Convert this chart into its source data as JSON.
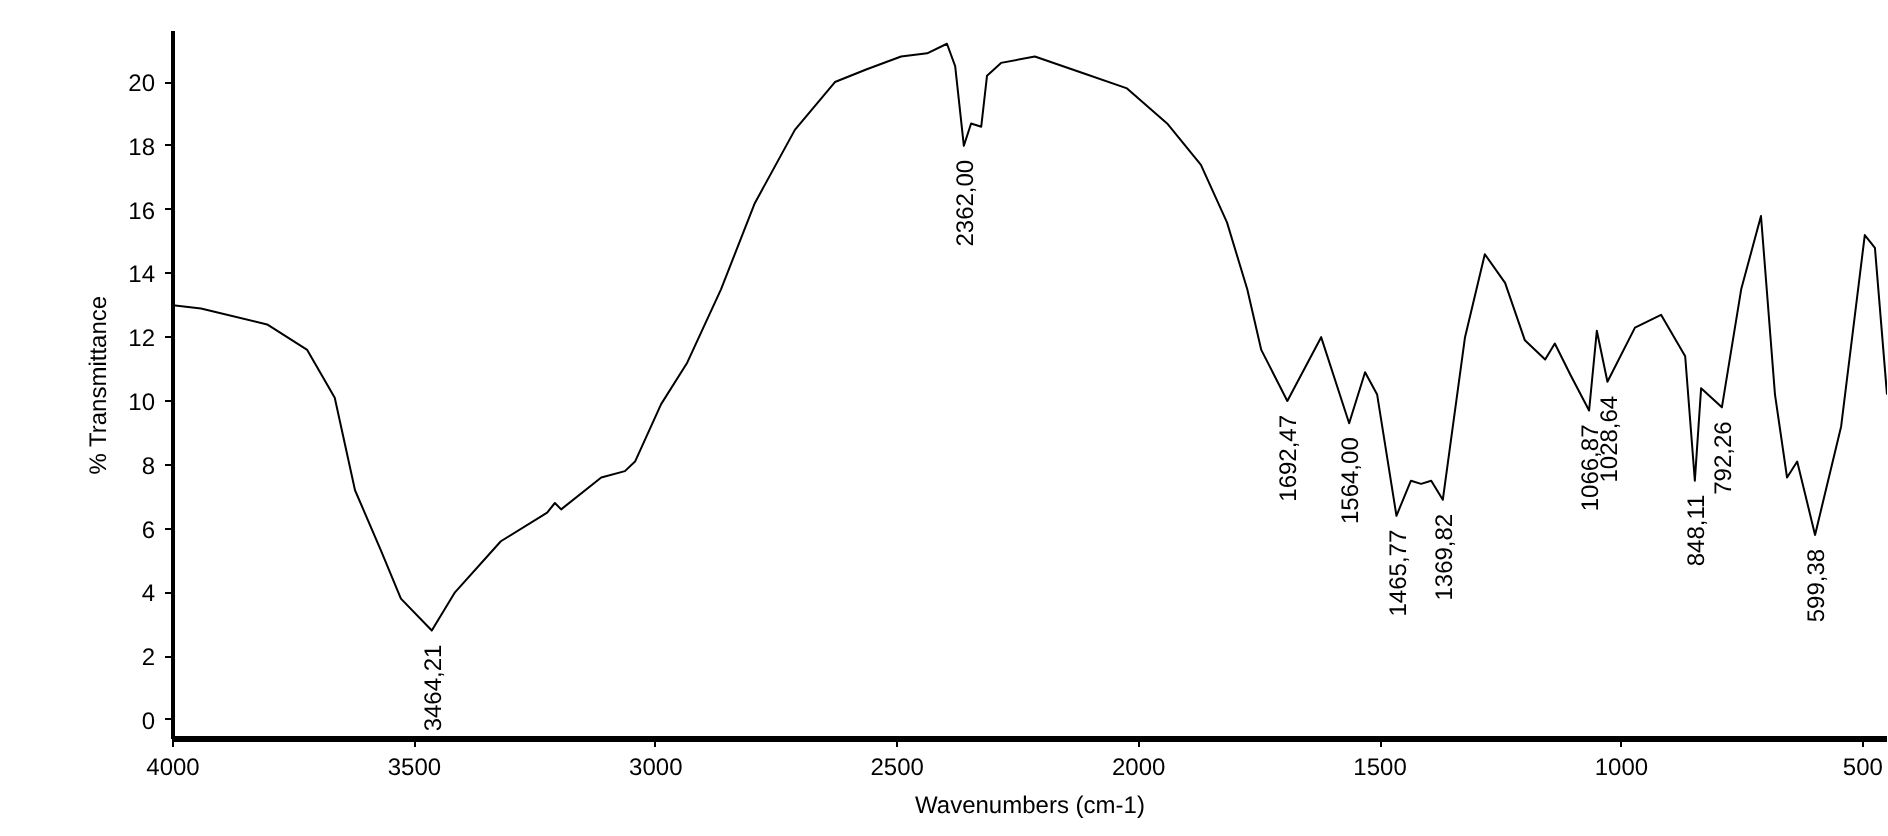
{
  "chart_data": {
    "type": "line",
    "xlabel": "Wavenumbers (cm-1)",
    "ylabel": "% Transmittance",
    "xlim": [
      4000,
      450
    ],
    "ylim": [
      -0.6,
      21.6
    ],
    "xticks": [
      4000,
      3500,
      3000,
      2500,
      2000,
      1500,
      1000,
      500
    ],
    "yticks": [
      0,
      2,
      4,
      6,
      8,
      10,
      12,
      14,
      16,
      18,
      20
    ],
    "grid": false,
    "marker": "none",
    "line_style": "solid",
    "series": [
      {
        "color": "#000000",
        "x": [
          4000,
          3942,
          3805,
          3722,
          3665,
          3623,
          3569,
          3528,
          3464,
          3416,
          3321,
          3225,
          3209,
          3196,
          3113,
          3064,
          3043,
          2989,
          2935,
          2865,
          2795,
          2712,
          2629,
          2563,
          2492,
          2438,
          2397,
          2380,
          2362,
          2347,
          2326,
          2314,
          2285,
          2215,
          2119,
          2024,
          1941,
          1871,
          1817,
          1775,
          1746,
          1692,
          1622,
          1564,
          1531,
          1506,
          1466,
          1436,
          1415,
          1394,
          1370,
          1324,
          1283,
          1241,
          1200,
          1158,
          1138,
          1105,
          1067,
          1051,
          1029,
          972,
          918,
          868,
          848,
          835,
          792,
          752,
          711,
          682,
          657,
          636,
          599,
          545,
          496,
          475,
          450
        ],
        "values": [
          13.0,
          12.9,
          12.4,
          11.6,
          10.1,
          7.2,
          5.3,
          3.8,
          2.8,
          4.0,
          5.6,
          6.5,
          6.8,
          6.6,
          7.6,
          7.8,
          8.1,
          9.9,
          11.2,
          13.5,
          16.2,
          18.5,
          20.0,
          20.4,
          20.8,
          20.9,
          21.2,
          20.5,
          18.0,
          18.7,
          18.6,
          20.2,
          20.6,
          20.8,
          20.3,
          19.8,
          18.7,
          17.4,
          15.6,
          13.5,
          11.6,
          10.0,
          12.0,
          9.3,
          10.9,
          10.2,
          6.4,
          7.5,
          7.4,
          7.5,
          6.9,
          12.0,
          14.6,
          13.7,
          11.9,
          11.3,
          11.8,
          10.8,
          9.7,
          12.2,
          10.6,
          12.3,
          12.7,
          11.4,
          7.5,
          10.4,
          9.8,
          13.5,
          15.8,
          10.2,
          7.6,
          8.1,
          5.8,
          9.2,
          15.2,
          14.8,
          10.2
        ]
      }
    ],
    "annotations": [
      {
        "text": "3464,21",
        "x": 3464.21,
        "y": 2.8
      },
      {
        "text": "2362,00",
        "x": 2362.0,
        "y": 18.0
      },
      {
        "text": "1692,47",
        "x": 1692.47,
        "y": 10.0
      },
      {
        "text": "1564,00",
        "x": 1564.0,
        "y": 9.3
      },
      {
        "text": "1465,77",
        "x": 1465.77,
        "y": 6.4
      },
      {
        "text": "1369,82",
        "x": 1369.82,
        "y": 6.9
      },
      {
        "text": "1066,87",
        "x": 1066.87,
        "y": 9.7
      },
      {
        "text": "1028,64",
        "x": 1028.64,
        "y": 10.6
      },
      {
        "text": "848,11",
        "x": 848.11,
        "y": 7.5
      },
      {
        "text": "792,26",
        "x": 792.26,
        "y": 9.8
      },
      {
        "text": "599,38",
        "x": 599.38,
        "y": 5.8
      }
    ]
  }
}
